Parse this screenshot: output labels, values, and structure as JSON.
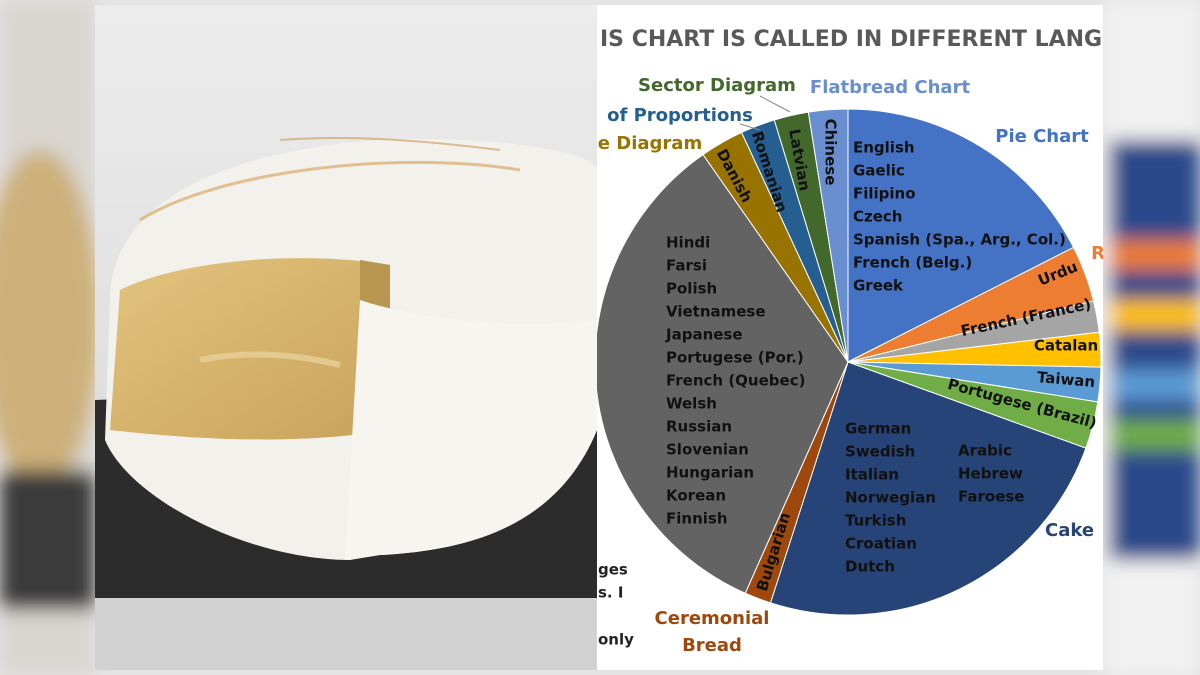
{
  "chart_data": {
    "type": "pie",
    "title": "IS CHART IS CALLED IN DIFFERENT LANGU",
    "categories": [
      "Pie Chart",
      "R",
      null,
      null,
      null,
      null,
      "Cake",
      "Ceremonial Bread",
      null,
      "e Diagram",
      "of Proportions",
      "Sector Diagram",
      "Flatbread Chart"
    ],
    "values": [
      17.5,
      3.6,
      2.0,
      2.2,
      2.2,
      3.0,
      24.4,
      1.7,
      33.6,
      2.8,
      2.2,
      2.2,
      2.5
    ],
    "colors": [
      "#4472c4",
      "#ed7d31",
      "#a5a5a5",
      "#ffc000",
      "#5b9bd5",
      "#70ad47",
      "#264478",
      "#9e480e",
      "#636363",
      "#997300",
      "#255e91",
      "#43682b",
      "#698ed0"
    ],
    "inner_labels": [
      [
        [
          "English",
          "Gaelic",
          "Filipino",
          "Czech",
          "Spanish (Spa., Arg., Col.)",
          "French (Belg.)",
          "Greek"
        ]
      ],
      [
        [
          "Urdu"
        ]
      ],
      [
        [
          "French (France)"
        ]
      ],
      [
        [
          "Catalan"
        ]
      ],
      [
        [
          "Taiwan"
        ]
      ],
      [
        [
          "Portugese (Brazil)"
        ]
      ],
      [
        [
          "German",
          "Swedish",
          "Italian",
          "Norwegian",
          "Turkish",
          "Croatian",
          "Dutch"
        ],
        [
          "Arabic",
          "Hebrew",
          "Faroese"
        ]
      ],
      [
        [
          "Bulgarian"
        ]
      ],
      [
        [
          "Hindi",
          "Farsi",
          "Polish",
          "Vietnamese",
          "Japanese",
          "Portugese (Por.)",
          "French (Quebec)",
          "Welsh",
          "Russian",
          "Slovenian",
          "Hungarian",
          "Korean",
          "Finnish"
        ]
      ],
      [
        [
          "Danish"
        ]
      ],
      [
        [
          "Romanian"
        ]
      ],
      [
        [
          "Latvian"
        ]
      ],
      [
        [
          "Chinese"
        ]
      ]
    ],
    "fragments": [
      "ges",
      "s. I",
      "only"
    ]
  }
}
